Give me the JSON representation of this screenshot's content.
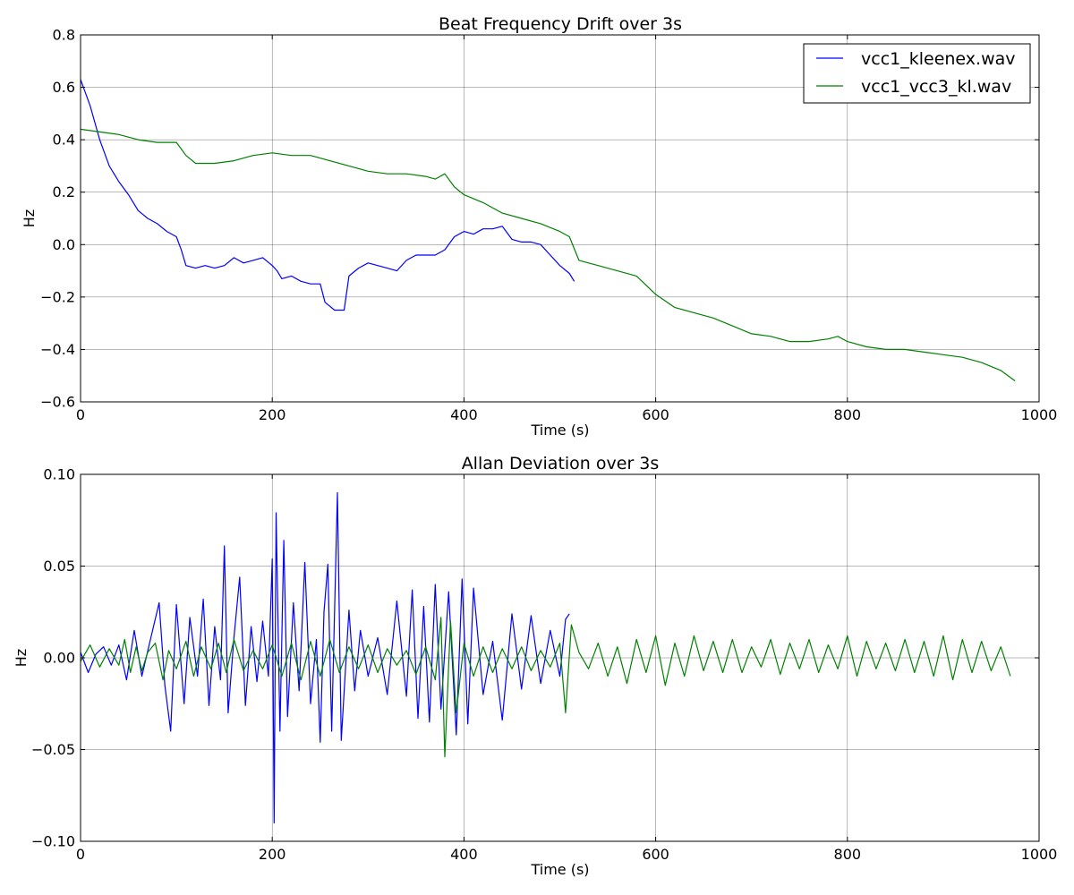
{
  "chart_data": [
    {
      "type": "line",
      "title": "Beat Frequency Drift over 3s",
      "xlabel": "Time (s)",
      "ylabel": "Hz",
      "xlim": [
        0,
        1000
      ],
      "ylim": [
        -0.6,
        0.8
      ],
      "xticks": [
        0,
        200,
        400,
        600,
        800,
        1000
      ],
      "yticks": [
        -0.6,
        -0.4,
        -0.2,
        0.0,
        0.2,
        0.4,
        0.6,
        0.8
      ],
      "xtick_labels": [
        "0",
        "200",
        "400",
        "600",
        "800",
        "1000"
      ],
      "ytick_labels": [
        "−0.6",
        "−0.4",
        "−0.2",
        "0.0",
        "0.2",
        "0.4",
        "0.6",
        "0.8"
      ],
      "grid": true,
      "legend": "top-right",
      "series": [
        {
          "name": "vcc1_kleenex.wav",
          "color": "#0000ff",
          "x": [
            0,
            10,
            20,
            30,
            40,
            50,
            60,
            70,
            80,
            90,
            100,
            105,
            110,
            120,
            130,
            140,
            150,
            160,
            170,
            180,
            190,
            200,
            205,
            210,
            220,
            230,
            240,
            250,
            255,
            265,
            275,
            280,
            290,
            300,
            310,
            320,
            330,
            340,
            350,
            360,
            370,
            380,
            390,
            400,
            410,
            420,
            430,
            440,
            450,
            460,
            470,
            480,
            490,
            500,
            510,
            515
          ],
          "y": [
            0.63,
            0.53,
            0.4,
            0.3,
            0.24,
            0.19,
            0.13,
            0.1,
            0.08,
            0.05,
            0.03,
            -0.02,
            -0.08,
            -0.09,
            -0.08,
            -0.09,
            -0.08,
            -0.05,
            -0.07,
            -0.06,
            -0.05,
            -0.08,
            -0.1,
            -0.13,
            -0.12,
            -0.14,
            -0.15,
            -0.15,
            -0.22,
            -0.25,
            -0.25,
            -0.12,
            -0.09,
            -0.07,
            -0.08,
            -0.09,
            -0.1,
            -0.06,
            -0.04,
            -0.04,
            -0.04,
            -0.02,
            0.03,
            0.05,
            0.04,
            0.06,
            0.06,
            0.07,
            0.02,
            0.01,
            0.01,
            0.0,
            -0.04,
            -0.08,
            -0.11,
            -0.14
          ]
        },
        {
          "name": "vcc1_vcc3_kl.wav",
          "color": "#008000",
          "x": [
            0,
            20,
            40,
            60,
            80,
            100,
            110,
            120,
            140,
            160,
            180,
            200,
            220,
            240,
            260,
            280,
            300,
            320,
            340,
            360,
            370,
            380,
            390,
            400,
            420,
            440,
            460,
            480,
            500,
            510,
            520,
            540,
            560,
            580,
            600,
            620,
            640,
            660,
            680,
            700,
            720,
            740,
            760,
            780,
            790,
            800,
            820,
            840,
            860,
            880,
            900,
            920,
            940,
            960,
            975
          ],
          "y": [
            0.44,
            0.43,
            0.42,
            0.4,
            0.39,
            0.39,
            0.34,
            0.31,
            0.31,
            0.32,
            0.34,
            0.35,
            0.34,
            0.34,
            0.32,
            0.3,
            0.28,
            0.27,
            0.27,
            0.26,
            0.25,
            0.27,
            0.22,
            0.19,
            0.16,
            0.12,
            0.1,
            0.08,
            0.05,
            0.03,
            -0.06,
            -0.08,
            -0.1,
            -0.12,
            -0.19,
            -0.24,
            -0.26,
            -0.28,
            -0.31,
            -0.34,
            -0.35,
            -0.37,
            -0.37,
            -0.36,
            -0.35,
            -0.37,
            -0.39,
            -0.4,
            -0.4,
            -0.41,
            -0.42,
            -0.43,
            -0.45,
            -0.48,
            -0.52
          ]
        }
      ]
    },
    {
      "type": "line",
      "title": "Allan Deviation over 3s",
      "xlabel": "Time (s)",
      "ylabel": "Hz",
      "xlim": [
        0,
        1000
      ],
      "ylim": [
        -0.1,
        0.1
      ],
      "xticks": [
        0,
        200,
        400,
        600,
        800,
        1000
      ],
      "yticks": [
        -0.1,
        -0.05,
        0.0,
        0.05,
        0.1
      ],
      "xtick_labels": [
        "0",
        "200",
        "400",
        "600",
        "800",
        "1000"
      ],
      "ytick_labels": [
        "−0.10",
        "−0.05",
        "0.00",
        "0.05",
        "0.10"
      ],
      "grid": true,
      "series": [
        {
          "color": "#0000ff",
          "x": [
            0,
            8,
            16,
            24,
            32,
            40,
            48,
            56,
            64,
            72,
            82,
            88,
            94,
            100,
            108,
            114,
            122,
            128,
            134,
            140,
            146,
            150,
            154,
            160,
            166,
            172,
            178,
            184,
            190,
            196,
            200,
            202,
            204,
            208,
            212,
            216,
            222,
            228,
            234,
            240,
            246,
            250,
            254,
            258,
            262,
            268,
            272,
            280,
            286,
            292,
            300,
            310,
            320,
            330,
            340,
            346,
            352,
            358,
            364,
            370,
            376,
            384,
            392,
            398,
            404,
            410,
            420,
            430,
            440,
            450,
            460,
            470,
            480,
            490,
            500,
            506,
            510
          ],
          "y": [
            0.003,
            -0.008,
            0.002,
            0.006,
            -0.004,
            0.007,
            -0.012,
            0.015,
            -0.01,
            0.008,
            0.03,
            -0.015,
            -0.04,
            0.029,
            -0.025,
            0.022,
            -0.01,
            0.032,
            -0.026,
            0.017,
            -0.012,
            0.061,
            -0.03,
            0.011,
            0.044,
            -0.026,
            0.017,
            -0.013,
            0.02,
            -0.01,
            0.054,
            -0.09,
            0.079,
            -0.04,
            0.064,
            -0.032,
            0.03,
            -0.018,
            0.052,
            -0.025,
            0.01,
            -0.046,
            0.025,
            0.051,
            -0.04,
            0.09,
            -0.045,
            0.026,
            -0.018,
            0.015,
            -0.01,
            0.011,
            -0.02,
            0.031,
            -0.021,
            0.037,
            -0.033,
            0.028,
            -0.035,
            0.04,
            -0.028,
            0.036,
            -0.042,
            0.043,
            -0.036,
            0.038,
            -0.02,
            0.009,
            -0.034,
            0.024,
            -0.017,
            0.023,
            -0.014,
            0.015,
            -0.01,
            0.021,
            0.024
          ]
        },
        {
          "color": "#008000",
          "x": [
            0,
            10,
            20,
            30,
            40,
            46,
            52,
            58,
            64,
            70,
            78,
            86,
            92,
            100,
            110,
            118,
            126,
            136,
            144,
            152,
            160,
            170,
            180,
            190,
            200,
            210,
            220,
            230,
            240,
            250,
            260,
            270,
            280,
            290,
            300,
            310,
            320,
            330,
            340,
            350,
            360,
            370,
            376,
            380,
            386,
            392,
            400,
            410,
            420,
            430,
            440,
            450,
            460,
            470,
            480,
            490,
            500,
            506,
            512,
            520,
            530,
            540,
            550,
            560,
            570,
            580,
            590,
            600,
            610,
            620,
            630,
            640,
            650,
            660,
            670,
            680,
            690,
            700,
            710,
            720,
            730,
            740,
            750,
            760,
            770,
            780,
            790,
            800,
            810,
            820,
            830,
            840,
            850,
            860,
            870,
            880,
            890,
            900,
            910,
            920,
            930,
            940,
            950,
            960,
            970
          ],
          "y": [
            -0.002,
            0.007,
            -0.005,
            0.005,
            -0.004,
            0.01,
            -0.008,
            0.006,
            -0.007,
            0.003,
            0.008,
            -0.012,
            0.004,
            -0.006,
            0.009,
            -0.01,
            0.006,
            -0.006,
            0.008,
            -0.008,
            0.01,
            -0.007,
            0.004,
            -0.006,
            0.007,
            -0.01,
            0.008,
            -0.012,
            0.009,
            -0.01,
            0.01,
            -0.008,
            0.006,
            -0.006,
            0.007,
            -0.008,
            0.005,
            -0.004,
            0.004,
            -0.009,
            0.006,
            -0.012,
            0.022,
            -0.054,
            0.02,
            -0.03,
            0.008,
            -0.01,
            0.006,
            -0.008,
            0.005,
            -0.006,
            0.006,
            -0.007,
            0.004,
            -0.005,
            0.008,
            -0.03,
            0.018,
            0.003,
            -0.006,
            0.008,
            -0.01,
            0.006,
            -0.014,
            0.01,
            -0.008,
            0.012,
            -0.015,
            0.008,
            -0.01,
            0.012,
            -0.007,
            0.009,
            -0.008,
            0.01,
            -0.008,
            0.006,
            -0.005,
            0.01,
            -0.009,
            0.008,
            -0.006,
            0.01,
            -0.008,
            0.007,
            -0.006,
            0.012,
            -0.01,
            0.009,
            -0.006,
            0.008,
            -0.007,
            0.01,
            -0.008,
            0.009,
            -0.01,
            0.012,
            -0.012,
            0.01,
            -0.008,
            0.009,
            -0.007,
            0.006,
            -0.01
          ]
        }
      ]
    }
  ]
}
